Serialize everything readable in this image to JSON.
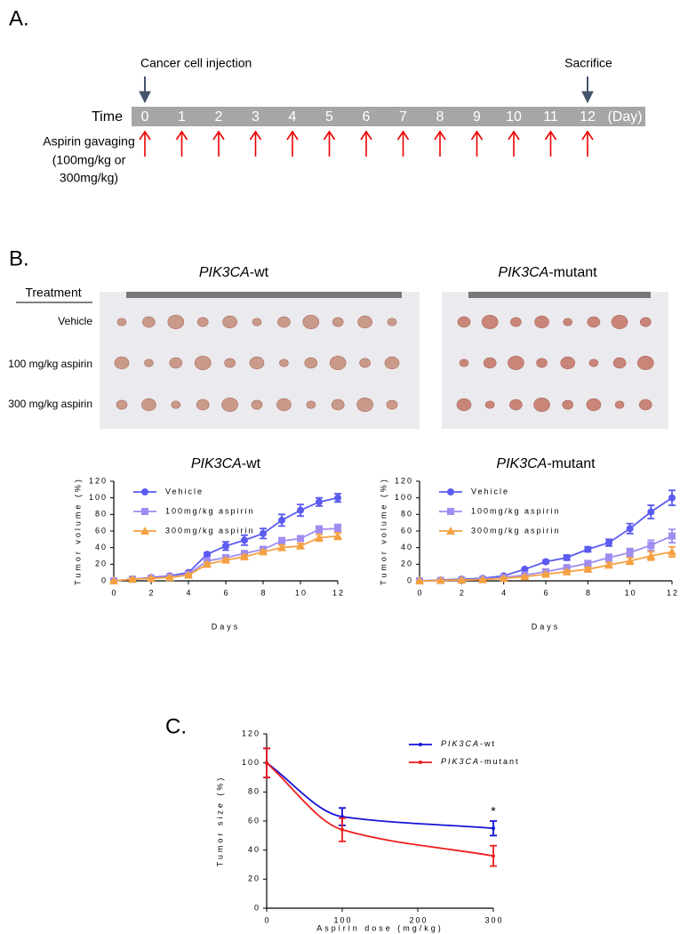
{
  "panel_a": {
    "label": "A.",
    "injection": "Cancer cell injection",
    "sacrifice": "Sacrifice",
    "time_label": "Time",
    "days": [
      "0",
      "1",
      "2",
      "3",
      "4",
      "5",
      "6",
      "7",
      "8",
      "9",
      "10",
      "11",
      "12"
    ],
    "unit": "(Day)",
    "gavage": [
      "Aspirin gavaging",
      "(100mg/kg or",
      "300mg/kg)"
    ]
  },
  "panel_b": {
    "label": "B.",
    "photo_titles": [
      "PIK3CA-wt",
      "PIK3CA-mutant"
    ],
    "treatment_header": "Treatment",
    "treatments": [
      "Vehicle",
      "100 mg/kg aspirin",
      "300 mg/kg aspirin"
    ]
  },
  "panel_c": {
    "label": "C."
  },
  "chart_data": [
    {
      "type": "line",
      "title": "PIK3CA-wt",
      "xlabel": "Days",
      "ylabel": "Tumor volume (%)",
      "x": [
        0,
        1,
        2,
        3,
        4,
        5,
        6,
        7,
        8,
        9,
        10,
        11,
        12
      ],
      "xlim": [
        0,
        12
      ],
      "ylim": [
        0,
        120
      ],
      "xticks": [
        0,
        2,
        4,
        6,
        8,
        10,
        12
      ],
      "yticks": [
        0,
        20,
        40,
        60,
        80,
        100,
        120
      ],
      "legend": "top-left",
      "series": [
        {
          "name": "Vehicle",
          "color": "#5b5bef",
          "marker": "circle",
          "values": [
            0,
            2,
            4,
            6,
            10,
            32,
            42,
            49,
            57,
            73,
            85,
            95,
            100
          ],
          "errors": [
            0,
            1,
            1,
            1,
            2,
            2,
            5,
            6,
            6,
            7,
            7,
            5,
            5
          ]
        },
        {
          "name": "100mg/kg aspirin",
          "color": "#a08cf0",
          "marker": "square",
          "values": [
            0,
            2,
            3,
            5,
            8,
            24,
            28,
            33,
            38,
            48,
            51,
            62,
            63
          ],
          "errors": [
            0,
            1,
            1,
            1,
            1,
            2,
            2,
            3,
            3,
            4,
            3,
            4,
            5
          ]
        },
        {
          "name": "300mg/kg aspirin",
          "color": "#f5a142",
          "marker": "triangle",
          "values": [
            0,
            2,
            3,
            4,
            7,
            20,
            25,
            29,
            35,
            40,
            42,
            52,
            54
          ],
          "errors": [
            0,
            1,
            1,
            1,
            1,
            2,
            2,
            2,
            2,
            3,
            3,
            4,
            4
          ]
        }
      ]
    },
    {
      "type": "line",
      "title": "PIK3CA-mutant",
      "xlabel": "Days",
      "ylabel": "Tumor volume (%)",
      "x": [
        0,
        1,
        2,
        3,
        4,
        5,
        6,
        7,
        8,
        9,
        10,
        11,
        12
      ],
      "xlim": [
        0,
        12
      ],
      "ylim": [
        0,
        120
      ],
      "xticks": [
        0,
        2,
        4,
        6,
        8,
        10,
        12
      ],
      "yticks": [
        0,
        20,
        40,
        60,
        80,
        100,
        120
      ],
      "legend": "top-left",
      "series": [
        {
          "name": "Vehicle",
          "color": "#5b5bef",
          "marker": "circle",
          "values": [
            0,
            1,
            2,
            3,
            6,
            14,
            23,
            28,
            38,
            46,
            63,
            83,
            100
          ],
          "errors": [
            0,
            1,
            1,
            1,
            1,
            1,
            2,
            3,
            3,
            4,
            6,
            8,
            9
          ]
        },
        {
          "name": "100mg/kg aspirin",
          "color": "#a08cf0",
          "marker": "square",
          "values": [
            0,
            0.5,
            1,
            2,
            4,
            7,
            11,
            16,
            21,
            28,
            34,
            43,
            54
          ],
          "errors": [
            0,
            0.5,
            0.5,
            1,
            1,
            1,
            2,
            2,
            3,
            4,
            5,
            6,
            8
          ]
        },
        {
          "name": "300mg/kg aspirin",
          "color": "#f5a142",
          "marker": "triangle",
          "values": [
            0,
            0.5,
            1,
            1.5,
            3,
            5,
            8,
            11,
            14,
            19,
            24,
            30,
            35
          ],
          "errors": [
            0,
            0.5,
            0.5,
            0.5,
            1,
            1,
            1,
            2,
            2,
            3,
            4,
            5,
            6
          ]
        }
      ]
    },
    {
      "type": "line",
      "curve": "smooth",
      "xlabel": "Aspirin dose (mg/kg)",
      "ylabel": "Tumor size (%)",
      "x": [
        0,
        100,
        300
      ],
      "xlim": [
        0,
        300
      ],
      "ylim": [
        0,
        120
      ],
      "xticks": [
        0,
        100,
        200,
        300
      ],
      "yticks": [
        0,
        20,
        40,
        60,
        80,
        100,
        120
      ],
      "legend": "top-right",
      "annotations": [
        {
          "text": "*",
          "x": 300
        }
      ],
      "series": [
        {
          "name": "PIK3CA-wt",
          "color": "#1414d8",
          "marker": "dot",
          "values": [
            100,
            63,
            55
          ],
          "errors": [
            10,
            6,
            5
          ]
        },
        {
          "name": "PIK3CA-mutant",
          "color": "#ee1c1c",
          "marker": "dot",
          "values": [
            100,
            54,
            36
          ],
          "errors": [
            10,
            8,
            7
          ]
        }
      ]
    }
  ]
}
